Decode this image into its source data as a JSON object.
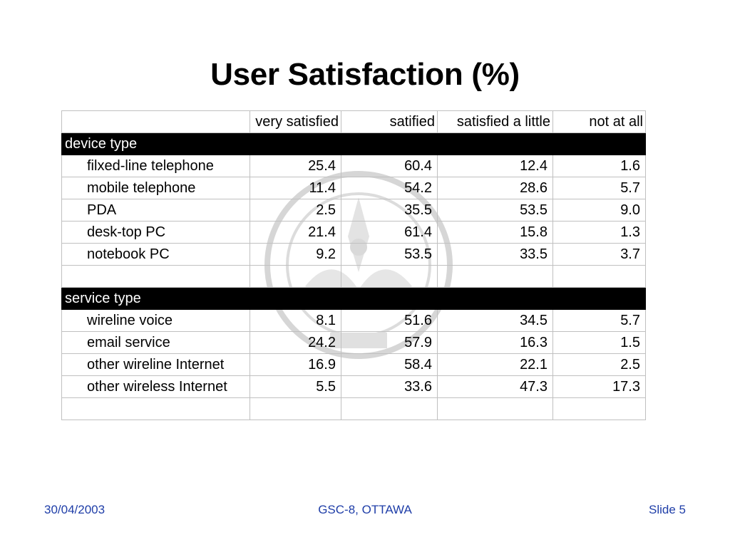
{
  "title": "User Satisfaction (%)",
  "table": {
    "columns": [
      "very satisfied",
      "satified",
      "satisfied a little",
      "not at all"
    ],
    "sections": [
      {
        "name": "device type",
        "rows": [
          {
            "label": "filxed-line telephone",
            "values": [
              "25.4",
              "60.4",
              "12.4",
              "1.6"
            ]
          },
          {
            "label": "mobile telephone",
            "values": [
              "11.4",
              "54.2",
              "28.6",
              "5.7"
            ]
          },
          {
            "label": "PDA",
            "values": [
              "2.5",
              "35.5",
              "53.5",
              "9.0"
            ]
          },
          {
            "label": "desk-top PC",
            "values": [
              "21.4",
              "61.4",
              "15.8",
              "1.3"
            ]
          },
          {
            "label": "notebook PC",
            "values": [
              "9.2",
              "53.5",
              "33.5",
              "3.7"
            ]
          }
        ]
      },
      {
        "name": "service type",
        "rows": [
          {
            "label": "wireline voice",
            "values": [
              "8.1",
              "51.6",
              "34.5",
              "5.7"
            ]
          },
          {
            "label": "email service",
            "values": [
              "24.2",
              "57.9",
              "16.3",
              "1.5"
            ]
          },
          {
            "label": "other wireline Internet",
            "values": [
              "16.9",
              "58.4",
              "22.1",
              "2.5"
            ]
          },
          {
            "label": "other wireless Internet",
            "values": [
              "5.5",
              "33.6",
              "47.3",
              "17.3"
            ]
          }
        ]
      }
    ]
  },
  "footer": {
    "date": "30/04/2003",
    "event": "GSC-8, OTTAWA",
    "slide": "Slide 5"
  },
  "watermark": {
    "icon": "conference-seal-icon",
    "color": "#cfcfcf"
  }
}
